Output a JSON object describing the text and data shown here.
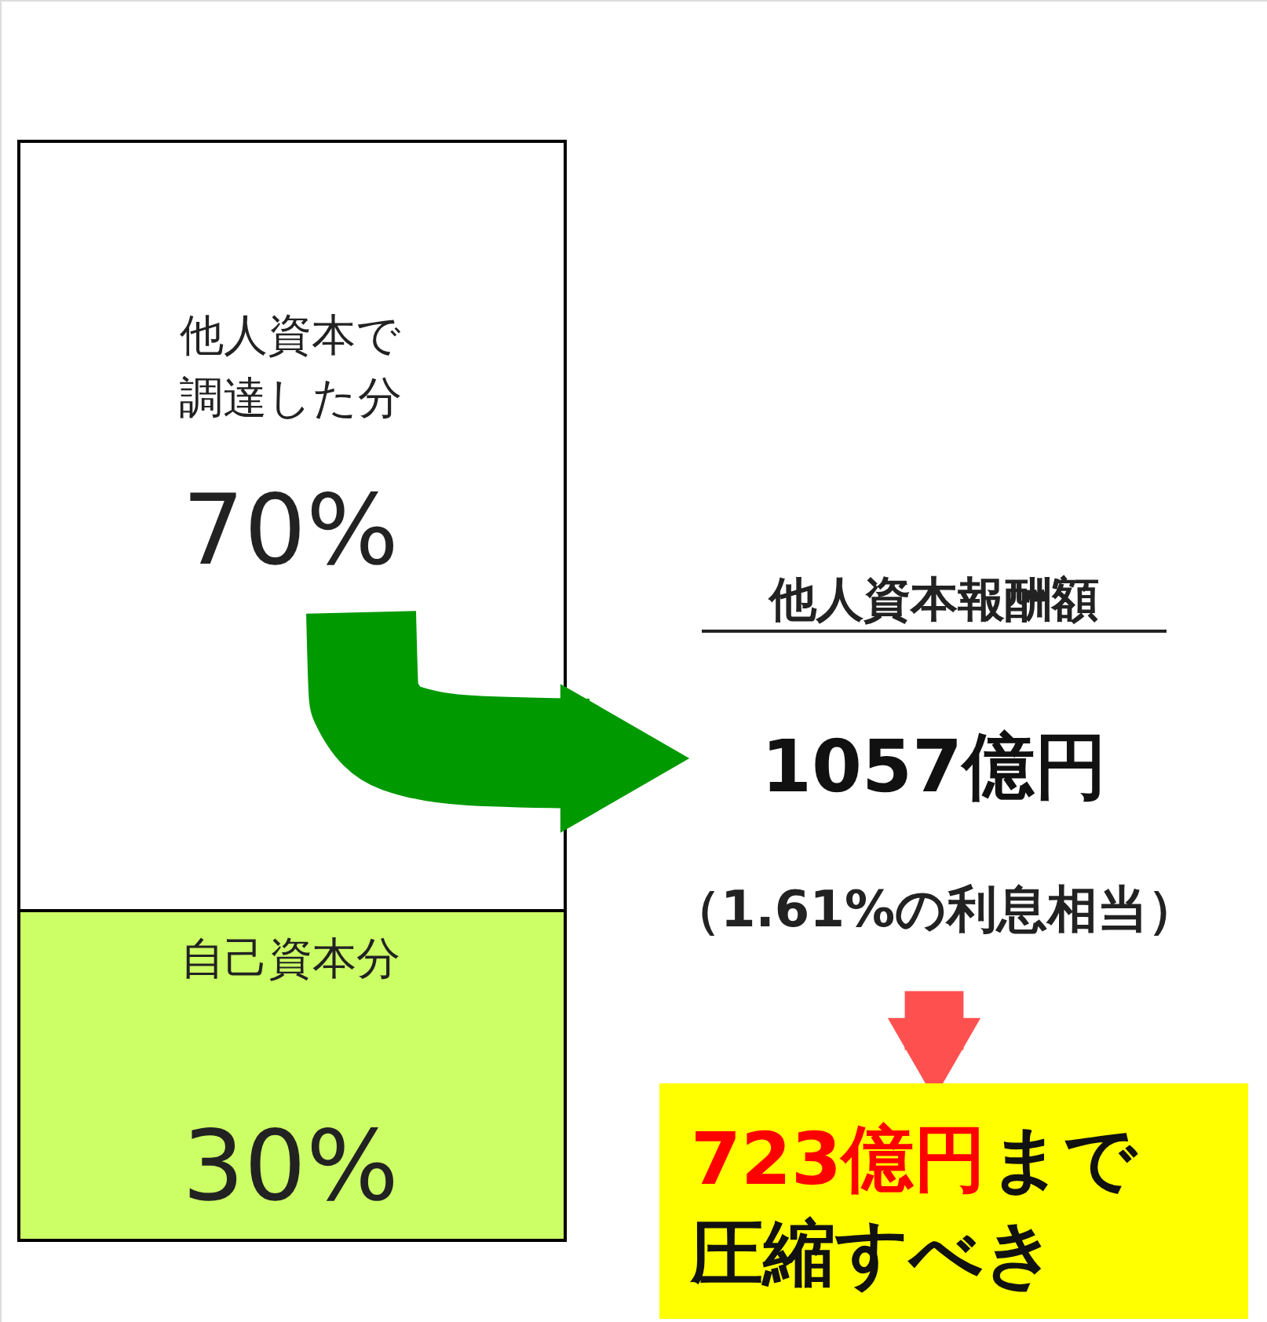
{
  "chart_data": {
    "type": "bar",
    "stacked": true,
    "categories": [
      null
    ],
    "ylim": [
      0,
      100
    ],
    "tick_labels": false,
    "series": [
      {
        "name": "自己資本分",
        "color": "#ccff66",
        "values": [
          30
        ],
        "value_labels": [
          "30%"
        ]
      },
      {
        "name": "他人資本で調達した分",
        "color": "#ffffff",
        "values": [
          70
        ],
        "value_labels": [
          "70%"
        ]
      }
    ],
    "annotations": [
      "他人資本報酬額",
      "1057億円",
      "（1.61%の利息相当）",
      "723億円",
      "まで",
      "圧縮すべき"
    ]
  }
}
